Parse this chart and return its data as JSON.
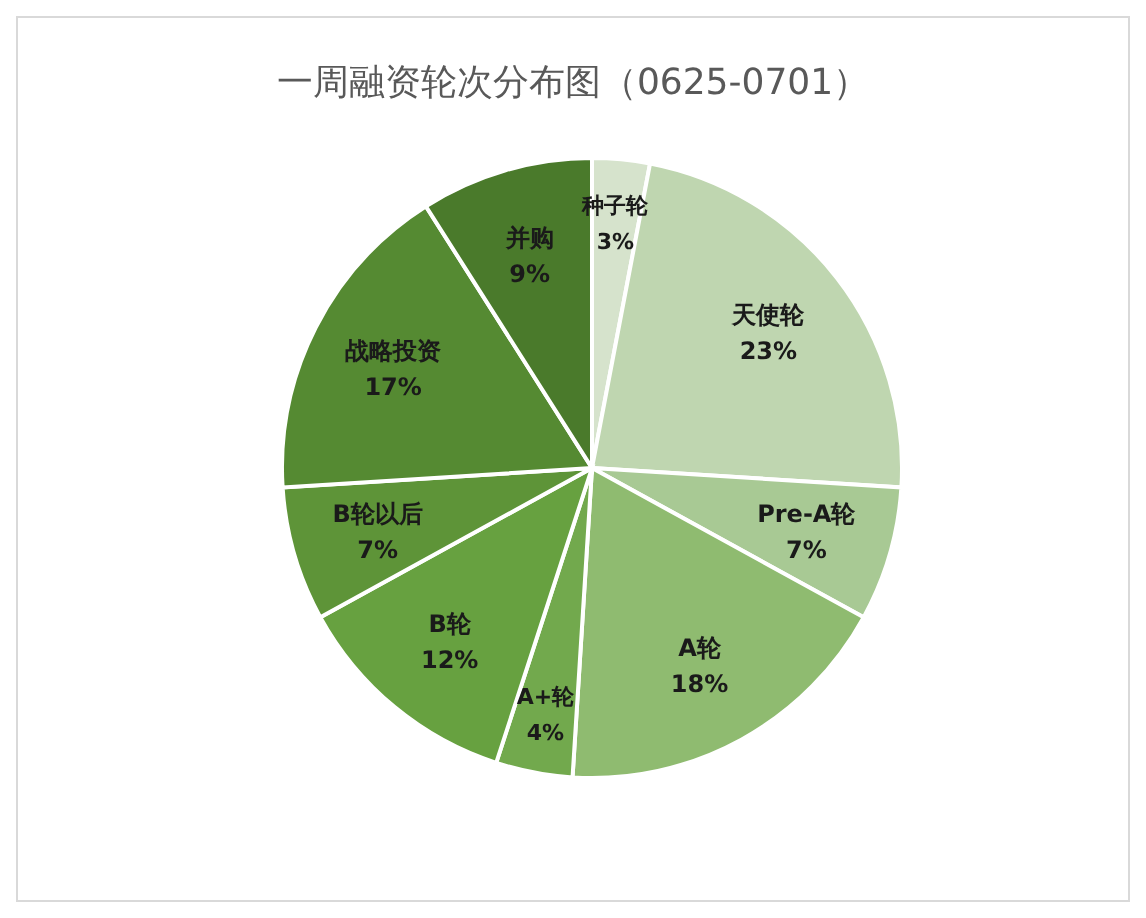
{
  "chart_data": {
    "type": "pie",
    "title": "一周融资轮次分布图（0625-0701）",
    "categories": [
      "种子轮",
      "天使轮",
      "Pre-A轮",
      "A轮",
      "A+轮",
      "B轮",
      "B轮以后",
      "战略投资",
      "并购"
    ],
    "values": [
      3,
      23,
      7,
      18,
      4,
      12,
      7,
      17,
      9
    ],
    "colors": [
      "#d6e3cc",
      "#bfd6b0",
      "#a8c994",
      "#8fbb70",
      "#72a94d",
      "#67a140",
      "#5e9438",
      "#558a32",
      "#4a7a2b"
    ],
    "value_labels": [
      "3%",
      "23%",
      "7%",
      "18%",
      "4%",
      "12%",
      "7%",
      "17%",
      "9%"
    ],
    "legend": false
  }
}
